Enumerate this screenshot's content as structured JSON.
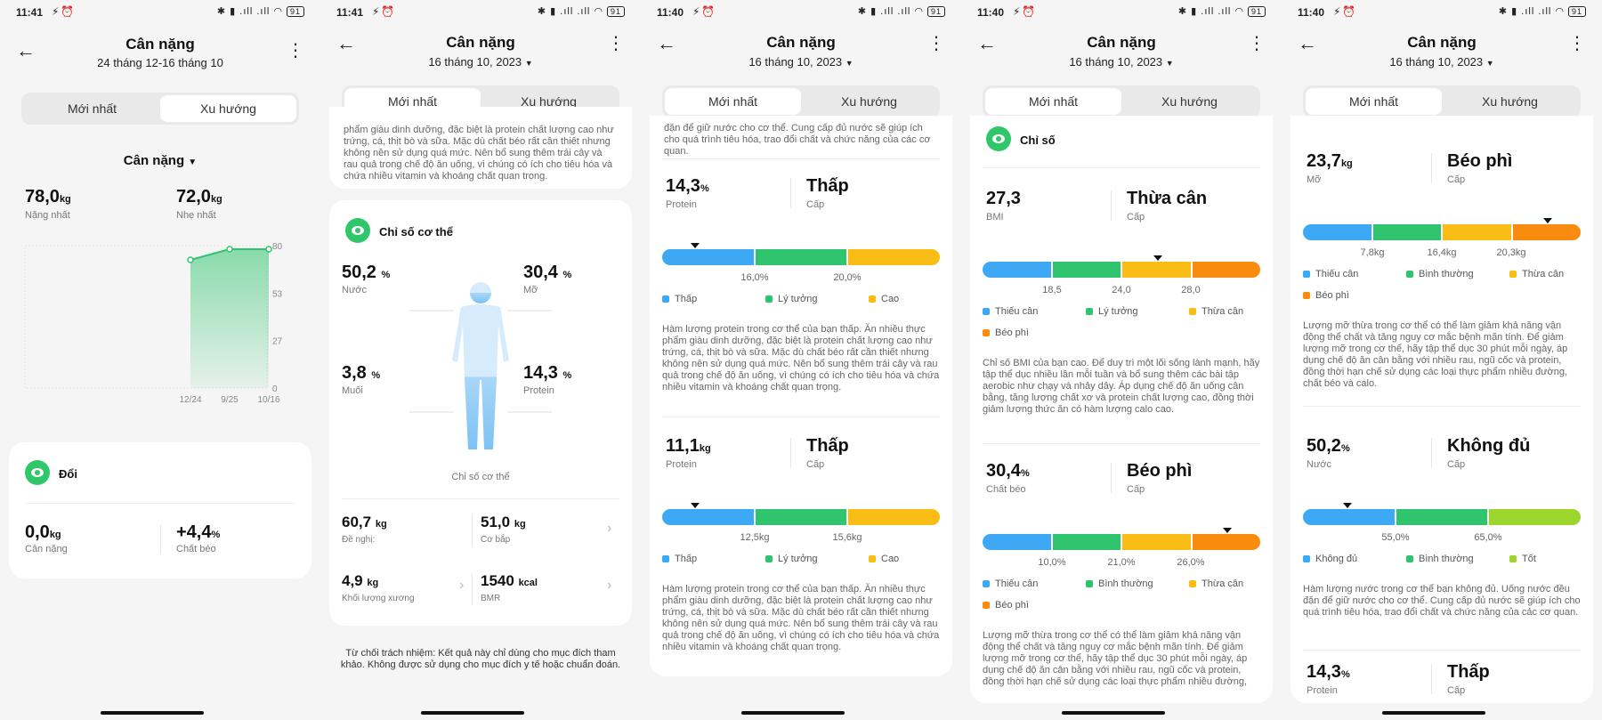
{
  "colors": {
    "blue": "#3da9f5",
    "green": "#31c46f",
    "yellow": "#f9bd16",
    "orange": "#f98c0e",
    "lime": "#9cd62c",
    "accent": "#2fc76a"
  },
  "status": {
    "battery": "91"
  },
  "common": {
    "title": "Cân nặng",
    "tab_latest": "Mới nhất",
    "tab_trend": "Xu hướng",
    "date": "16 tháng 10, 2023"
  },
  "s1": {
    "time": "11:41",
    "subtitle": "24 tháng 12-16 tháng 10",
    "metric_select": "Cân nặng",
    "max_value": "78,0",
    "max_unit": "kg",
    "max_label": "Nặng nhất",
    "min_value": "72,0",
    "min_unit": "kg",
    "min_label": "Nhẹ nhất",
    "change_title": "Đổi",
    "weight_change": "0,0",
    "weight_change_unit": "kg",
    "weight_change_label": "Cân nặng",
    "fat_change": "+4,4",
    "fat_change_unit": "%",
    "fat_change_label": "Chất béo"
  },
  "chart_data": {
    "type": "area",
    "x": [
      "12/24",
      "9/25",
      "10/16"
    ],
    "series": [
      {
        "values": [
          72.0,
          78.0,
          78.0
        ]
      }
    ],
    "yticks": [
      "80",
      "53",
      "27",
      "0"
    ],
    "ylim": [
      0,
      80
    ],
    "grid": false
  },
  "s2": {
    "time": "11:41",
    "top_text": "phẩm giàu dinh dưỡng, đặc biệt là protein chất lượng cao như trứng, cá, thịt bò và sữa. Mặc dù chất béo rất cần thiết nhưng không nên sử dụng quá mức. Nên bổ sung thêm trái cây và rau quả trong chế độ ăn uống, vì chúng có ích cho tiêu hóa và chứa nhiều vitamin và khoáng chất quan trọng.",
    "section_title": "Chỉ số cơ thể",
    "water": "50,2",
    "water_unit": "%",
    "water_label": "Nước",
    "fat": "30,4",
    "fat_unit": "%",
    "fat_label": "Mỡ",
    "salt": "3,8",
    "salt_unit": "%",
    "salt_label": "Muối",
    "protein": "14,3",
    "protein_unit": "%",
    "protein_label": "Protein",
    "body_caption": "Chỉ số cơ thể",
    "suggest": "60,7",
    "suggest_unit": "kg",
    "suggest_label": "Đề nghị:",
    "muscle": "51,0",
    "muscle_unit": "kg",
    "muscle_label": "Cơ bắp",
    "bone": "4,9",
    "bone_unit": "kg",
    "bone_label": "Khối lượng xương",
    "bmr": "1540",
    "bmr_unit": "kcal",
    "bmr_label": "BMR",
    "disclaimer": "Từ chối trách nhiệm: Kết quả này chỉ dùng cho mục đích tham khảo. Không được sử dụng cho mục đích y tế hoặc chuẩn đoán."
  },
  "s3": {
    "time": "11:40",
    "top_text": "đặn để giữ nước cho cơ thể. Cung cấp đủ nước sẽ giúp ích cho quá trình tiêu hóa, trao đổi chất và chức năng của các cơ quan.",
    "m1_value": "14,3",
    "m1_unit": "%",
    "m1_label": "Protein",
    "m1_level": "Thấp",
    "m1_level_label": "Cấp",
    "m1_ticks": [
      "16,0%",
      "20,0%"
    ],
    "m1_marker": 0.12,
    "m1_legend": [
      "Thấp",
      "Lý tưởng",
      "Cao"
    ],
    "m1_text": "Hàm lượng protein trong cơ thể của bạn thấp. Ăn nhiều thực phẩm giàu dinh dưỡng, đặc biệt là protein chất lượng cao như trứng, cá, thịt bò và sữa. Mặc dù chất béo rất cần thiết nhưng không nên sử dụng quá mức. Nên bổ sung thêm trái cây và rau quả trong chế độ ăn uống, vì chúng có ích cho tiêu hóa và chứa nhiều vitamin và khoáng chất quan trọng.",
    "m2_value": "11,1",
    "m2_unit": "kg",
    "m2_label": "Protein",
    "m2_level": "Thấp",
    "m2_level_label": "Cấp",
    "m2_ticks": [
      "12,5kg",
      "15,6kg"
    ],
    "m2_marker": 0.12,
    "m2_legend": [
      "Thấp",
      "Lý tưởng",
      "Cao"
    ],
    "m2_text": "Hàm lượng protein trong cơ thể của bạn thấp. Ăn nhiều thực phẩm giàu dinh dưỡng, đặc biệt là protein chất lượng cao như trứng, cá, thịt bò và sữa. Mặc dù chất béo rất cần thiết nhưng không nên sử dụng quá mức. Nên bổ sung thêm trái cây và rau quả trong chế độ ăn uống, vì chúng có ích cho tiêu hóa và chứa nhiều vitamin và khoáng chất quan trọng."
  },
  "s4": {
    "time": "11:40",
    "section_title": "Chỉ số",
    "m1_value": "27,3",
    "m1_unit": "",
    "m1_label": "BMI",
    "m1_level": "Thừa cân",
    "m1_level_label": "Cấp",
    "m1_ticks": [
      "18,5",
      "24,0",
      "28,0"
    ],
    "m1_marker": 0.63,
    "m1_legend": [
      "Thiếu cân",
      "Lý tưởng",
      "Thừa cân",
      "Béo phì"
    ],
    "m1_text": "Chỉ số BMI của bạn cao. Để duy trì một lối sống lành mạnh, hãy tập thể dục nhiều lần mỗi tuần và bổ sung thêm các bài tập aerobic như chạy và nhảy dây. Áp dụng chế độ ăn uống cân bằng, tăng lượng chất xơ và protein chất lượng cao, đồng thời giảm lượng thức ăn có hàm lượng calo cao.",
    "m2_value": "30,4",
    "m2_unit": "%",
    "m2_label": "Chất béo",
    "m2_level": "Béo phì",
    "m2_level_label": "Cấp",
    "m2_ticks": [
      "10,0%",
      "21,0%",
      "26,0%"
    ],
    "m2_marker": 0.88,
    "m2_legend": [
      "Thiếu cân",
      "Bình thường",
      "Thừa cân",
      "Béo phì"
    ],
    "m2_text": "Lượng mỡ thừa trong cơ thể có thể làm giảm khả năng vận động thể chất và tăng nguy cơ mắc bệnh mãn tính. Để giảm lượng mỡ trong cơ thể, hãy tập thể dục 30 phút mỗi ngày, áp dụng chế độ ăn cân bằng với nhiều rau, ngũ cốc và protein, đồng thời hạn chế sử dụng các loại thực phẩm nhiều đường,"
  },
  "s5": {
    "time": "11:40",
    "m1_value": "23,7",
    "m1_unit": "kg",
    "m1_label": "Mỡ",
    "m1_level": "Béo phì",
    "m1_level_label": "Cấp",
    "m1_ticks": [
      "7,8kg",
      "16,4kg",
      "20,3kg"
    ],
    "m1_marker": 0.88,
    "m1_legend": [
      "Thiếu cân",
      "Bình thường",
      "Thừa cân",
      "Béo phì"
    ],
    "m1_text": "Lượng mỡ thừa trong cơ thể có thể làm giảm khả năng vận động thể chất và tăng nguy cơ mắc bệnh mãn tính. Để giảm lượng mỡ trong cơ thể, hãy tập thể dục 30 phút mỗi ngày, áp dụng chế độ ăn cân bằng với nhiều rau, ngũ cốc và protein, đồng thời hạn chế sử dụng các loại thực phẩm nhiều đường, chất béo và calo.",
    "m2_value": "50,2",
    "m2_unit": "%",
    "m2_label": "Nước",
    "m2_level": "Không đủ",
    "m2_level_label": "Cấp",
    "m2_ticks": [
      "55,0%",
      "65,0%"
    ],
    "m2_marker": 0.16,
    "m2_legend": [
      "Không đủ",
      "Bình thường",
      "Tốt"
    ],
    "m2_text": "Hàm lượng nước trong cơ thể bạn không đủ. Uống nước đều đặn để giữ nước cho cơ thể. Cung cấp đủ nước sẽ giúp ích cho quá trình tiêu hóa, trao đổi chất và chức năng của các cơ quan.",
    "m3_value": "14,3",
    "m3_unit": "%",
    "m3_label": "Protein",
    "m3_level": "Thấp",
    "m3_level_label": "Cấp"
  }
}
